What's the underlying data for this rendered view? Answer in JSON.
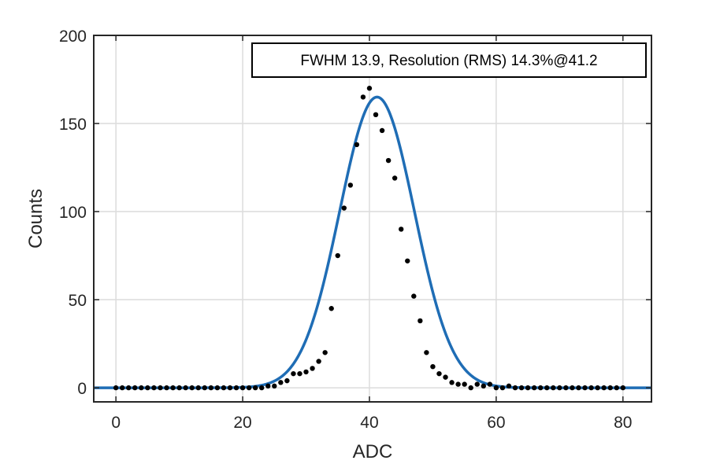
{
  "chart_data": {
    "type": "scatter",
    "xlabel": "ADC",
    "ylabel": "Counts",
    "xlim": [
      -3.5,
      84.5
    ],
    "ylim": [
      -8,
      200
    ],
    "xticks": [
      0,
      20,
      40,
      60,
      80
    ],
    "yticks": [
      0,
      50,
      100,
      150,
      200
    ],
    "grid": true,
    "annotation": "FWHM 13.9, Resolution (RMS) 14.3%@41.2",
    "colors": {
      "points": "#000000",
      "fit": "#1f6db5",
      "grid": "#dcdcdc",
      "axes": "#262626"
    },
    "series": [
      {
        "type": "scatter",
        "x": [
          0,
          1,
          2,
          3,
          4,
          5,
          6,
          7,
          8,
          9,
          10,
          11,
          12,
          13,
          14,
          15,
          16,
          17,
          18,
          19,
          20,
          21,
          22,
          23,
          24,
          25,
          26,
          27,
          28,
          29,
          30,
          31,
          32,
          33,
          34,
          35,
          36,
          37,
          38,
          39,
          40,
          41,
          42,
          43,
          44,
          45,
          46,
          47,
          48,
          49,
          50,
          51,
          52,
          53,
          54,
          55,
          56,
          57,
          58,
          59,
          60,
          61,
          62,
          63,
          64,
          65,
          66,
          67,
          68,
          69,
          70,
          71,
          72,
          73,
          74,
          75,
          76,
          77,
          78,
          79,
          80
        ],
        "y": [
          0,
          0,
          0,
          0,
          0,
          0,
          0,
          0,
          0,
          0,
          0,
          0,
          0,
          0,
          0,
          0,
          0,
          0,
          0,
          0,
          0,
          0,
          0,
          0,
          1,
          1,
          3,
          4,
          8,
          8,
          9,
          11,
          15,
          20,
          45,
          75,
          102,
          115,
          138,
          165,
          170,
          155,
          146,
          129,
          119,
          90,
          72,
          52,
          38,
          20,
          12,
          8,
          6,
          3,
          2,
          2,
          0,
          2,
          1,
          2,
          0,
          0,
          1,
          0,
          0,
          0,
          0,
          0,
          0,
          0,
          0,
          0,
          0,
          0,
          0,
          0,
          0,
          0,
          0,
          0,
          0
        ]
      },
      {
        "type": "line",
        "model": "gaussian",
        "amplitude": 165,
        "mean": 41.2,
        "fwhm": 13.9,
        "x_range": [
          -3.5,
          84.5
        ]
      }
    ]
  }
}
